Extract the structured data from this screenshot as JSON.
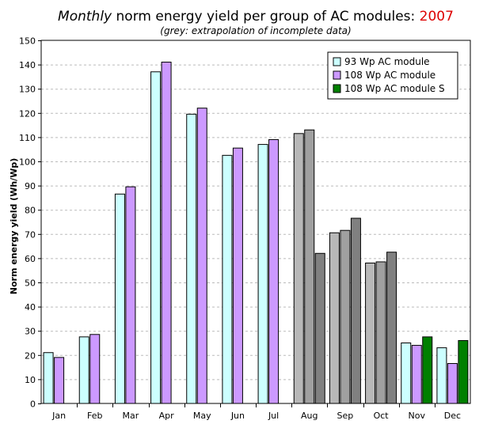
{
  "chart_data": {
    "type": "bar",
    "title_italic": "Monthly",
    "title_rest": " norm energy yield per group of AC modules: ",
    "title_year": "2007",
    "subtitle": "(grey: extrapolation of incomplete data)",
    "xlabel": "",
    "ylabel": "Norm energy yield (Wh/Wp)",
    "ylim": [
      0,
      150
    ],
    "yticks": [
      0,
      10,
      20,
      30,
      40,
      50,
      60,
      70,
      80,
      90,
      100,
      110,
      120,
      130,
      140,
      150
    ],
    "grid": "horizontal-dashed",
    "legend_position": "top-right",
    "categories": [
      "Jan",
      "Feb",
      "Mar",
      "Apr",
      "May",
      "Jun",
      "Jul",
      "Aug",
      "Sep",
      "Oct",
      "Nov",
      "Dec"
    ],
    "extrapolated_categories": [
      "Aug",
      "Sep",
      "Oct"
    ],
    "series": [
      {
        "name": "93 Wp AC module",
        "color": "#ccffff",
        "grey_color": "#b8b8b8",
        "values": [
          21,
          27.5,
          86.5,
          137,
          119.5,
          102.5,
          107,
          111.5,
          70.5,
          58,
          25,
          23
        ]
      },
      {
        "name": "108 Wp AC module",
        "color": "#cc99ff",
        "grey_color": "#a0a0a0",
        "values": [
          19,
          28.5,
          89.5,
          141,
          122,
          105.5,
          109,
          113,
          71.5,
          58.5,
          24,
          16.5
        ]
      },
      {
        "name": "108 Wp AC module S",
        "color": "#008000",
        "grey_color": "#808080",
        "values": [
          null,
          null,
          null,
          null,
          null,
          null,
          null,
          62,
          76.5,
          62.5,
          27.5,
          26
        ]
      }
    ]
  }
}
